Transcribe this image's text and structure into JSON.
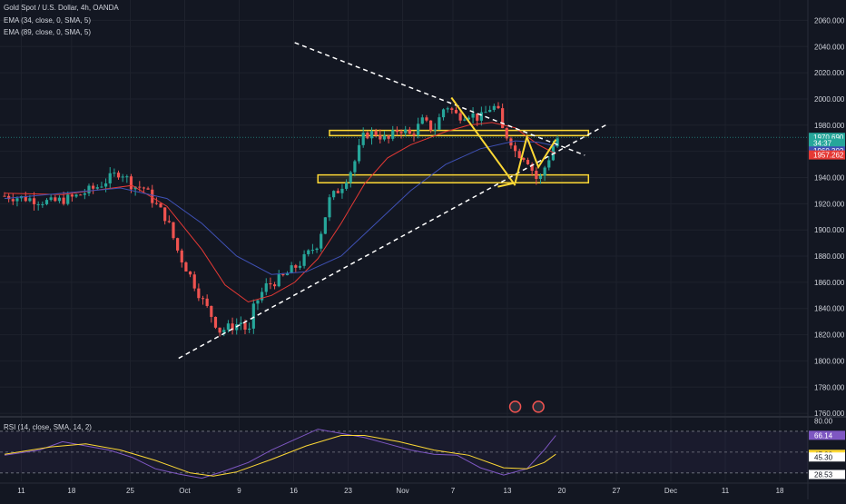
{
  "header": {
    "symbol_line": "Gold Spot / U.S. Dollar, 4h, OANDA",
    "ema_fast_line": "EMA (34, close, 0, SMA, 5)",
    "ema_slow_line": "EMA (89, close, 0, SMA, 5)",
    "rsi_line": "RSI (14, close, SMA, 14, 2)"
  },
  "colors": {
    "background": "#131722",
    "grid": "#1e222d",
    "up": "#26a69a",
    "down": "#ef5350",
    "ema_fast": "#e53935",
    "ema_slow": "#3f51b5",
    "rsi_line": "#7e57c2",
    "rsi_ma": "#fdd835",
    "zone": "#fdd835",
    "trendline": "#ffffff"
  },
  "chart_data": [
    {
      "type": "candlestick",
      "title": "Gold Spot / U.S. Dollar, 4h, OANDA",
      "ylim": [
        1758,
        2070
      ],
      "y_ticks": [
        2060,
        2040,
        2020,
        2000,
        1980,
        1960,
        1940,
        1920,
        1900,
        1880,
        1860,
        1840,
        1820,
        1800,
        1780,
        1760
      ],
      "y_tick_labels": [
        "2060.000",
        "2040.000",
        "2020.000",
        "2000.000",
        "1980.000",
        "1960.000",
        "1940.000",
        "1920.000",
        "1900.000",
        "1880.000",
        "1860.000",
        "1840.000",
        "1820.000",
        "1800.000",
        "1780.000",
        "1760.000"
      ],
      "x_tick_labels": [
        "11",
        "18",
        "25",
        "Oct",
        "9",
        "16",
        "23",
        "Nov",
        "7",
        "13",
        "20",
        "27",
        "Dec",
        "11",
        "18"
      ],
      "price_path": [
        [
          0,
          1926
        ],
        [
          4,
          1924
        ],
        [
          8,
          1921
        ],
        [
          12,
          1925
        ],
        [
          16,
          1933
        ],
        [
          20,
          1945
        ],
        [
          22,
          1934
        ],
        [
          24,
          1932
        ],
        [
          26,
          1920
        ],
        [
          28,
          1908
        ],
        [
          30,
          1882
        ],
        [
          32,
          1865
        ],
        [
          34,
          1847
        ],
        [
          36,
          1832
        ],
        [
          37,
          1823
        ],
        [
          39,
          1826
        ],
        [
          41,
          1830
        ],
        [
          42,
          1818
        ],
        [
          43,
          1842
        ],
        [
          45,
          1857
        ],
        [
          48,
          1864
        ],
        [
          51,
          1875
        ],
        [
          54,
          1890
        ],
        [
          56,
          1923
        ],
        [
          58,
          1933
        ],
        [
          60,
          1948
        ],
        [
          62,
          1973
        ],
        [
          64,
          1974
        ],
        [
          66,
          1968
        ],
        [
          68,
          1978
        ],
        [
          70,
          1972
        ],
        [
          72,
          1983
        ],
        [
          74,
          1976
        ],
        [
          76,
          1996
        ],
        [
          78,
          1987
        ],
        [
          80,
          1989
        ],
        [
          82,
          1985
        ],
        [
          84,
          1995
        ],
        [
          85,
          1991
        ],
        [
          86,
          1973
        ],
        [
          87,
          1971
        ],
        [
          88,
          1960
        ],
        [
          90,
          1955
        ],
        [
          91,
          1945
        ],
        [
          92,
          1936
        ],
        [
          93,
          1947
        ],
        [
          94,
          1957
        ],
        [
          95,
          1970
        ]
      ],
      "series": [
        {
          "name": "EMA (34, close, 0, SMA, 5)",
          "values_path": [
            [
              0,
              1928
            ],
            [
              10,
              1927
            ],
            [
              22,
              1934
            ],
            [
              28,
              1918
            ],
            [
              34,
              1885
            ],
            [
              38,
              1858
            ],
            [
              42,
              1845
            ],
            [
              46,
              1850
            ],
            [
              50,
              1860
            ],
            [
              54,
              1878
            ],
            [
              58,
              1905
            ],
            [
              62,
              1935
            ],
            [
              66,
              1955
            ],
            [
              70,
              1965
            ],
            [
              76,
              1975
            ],
            [
              80,
              1980
            ],
            [
              84,
              1982
            ],
            [
              88,
              1978
            ],
            [
              92,
              1965
            ],
            [
              95,
              1958
            ]
          ]
        },
        {
          "name": "EMA (89, close, 0, SMA, 5)",
          "values_path": [
            [
              0,
              1924
            ],
            [
              10,
              1928
            ],
            [
              20,
              1932
            ],
            [
              28,
              1924
            ],
            [
              34,
              1905
            ],
            [
              40,
              1880
            ],
            [
              46,
              1866
            ],
            [
              52,
              1868
            ],
            [
              58,
              1880
            ],
            [
              64,
              1905
            ],
            [
              70,
              1930
            ],
            [
              76,
              1950
            ],
            [
              82,
              1962
            ],
            [
              88,
              1968
            ],
            [
              92,
              1967
            ],
            [
              95,
              1964
            ]
          ]
        }
      ],
      "last_price_tags": [
        {
          "label": "1970.690",
          "value": 1970.69,
          "color": "#26a69a"
        },
        {
          "label": "34:37",
          "value": 1966.2,
          "color": "#26a69a"
        },
        {
          "label": "1960.302",
          "value": 1960.3,
          "color": "#3f51b5"
        },
        {
          "label": "1957.262",
          "value": 1957.26,
          "color": "#e53935"
        }
      ],
      "annotations": {
        "resistance_zone": [
          1972,
          1976
        ],
        "support_zone": [
          1936,
          1942
        ],
        "falling_trendline": [
          [
            50,
            2043
          ],
          [
            100,
            1957
          ]
        ],
        "rising_trendline": [
          [
            30,
            1802
          ],
          [
            104,
            1981
          ]
        ],
        "projection_down": [
          [
            77,
            2001
          ],
          [
            88,
            1934
          ]
        ],
        "projection_path": [
          [
            85,
            1933
          ],
          [
            88,
            1936
          ],
          [
            90,
            1971
          ],
          [
            92,
            1948
          ],
          [
            95,
            1969
          ]
        ]
      }
    },
    {
      "type": "line",
      "title": "RSI (14, close, SMA, 14, 2)",
      "ylim": [
        22,
        83
      ],
      "y_ticks": [
        80,
        66.14,
        47.88,
        45.3,
        28.53
      ],
      "y_tick_labels": [
        "80.00",
        "66.14",
        "47.88",
        "45.30",
        "28.53"
      ],
      "bands": [
        70,
        50,
        30
      ],
      "series": [
        {
          "name": "RSI",
          "values_path": [
            [
              0,
              47
            ],
            [
              6,
              52
            ],
            [
              10,
              60
            ],
            [
              14,
              56
            ],
            [
              18,
              52
            ],
            [
              22,
              45
            ],
            [
              26,
              34
            ],
            [
              30,
              29
            ],
            [
              34,
              25
            ],
            [
              38,
              32
            ],
            [
              42,
              40
            ],
            [
              46,
              52
            ],
            [
              50,
              62
            ],
            [
              54,
              72
            ],
            [
              58,
              68
            ],
            [
              62,
              64
            ],
            [
              66,
              58
            ],
            [
              70,
              52
            ],
            [
              74,
              48
            ],
            [
              78,
              47
            ],
            [
              82,
              35
            ],
            [
              86,
              28
            ],
            [
              90,
              34
            ],
            [
              93,
              52
            ],
            [
              95,
              66
            ]
          ]
        },
        {
          "name": "RSI MA",
          "values_path": [
            [
              0,
              48
            ],
            [
              8,
              55
            ],
            [
              14,
              58
            ],
            [
              20,
              52
            ],
            [
              26,
              42
            ],
            [
              32,
              30
            ],
            [
              36,
              27
            ],
            [
              40,
              31
            ],
            [
              46,
              43
            ],
            [
              52,
              56
            ],
            [
              58,
              66
            ],
            [
              62,
              66
            ],
            [
              68,
              60
            ],
            [
              74,
              52
            ],
            [
              80,
              47
            ],
            [
              86,
              35
            ],
            [
              90,
              34
            ],
            [
              93,
              40
            ],
            [
              95,
              48
            ]
          ]
        }
      ]
    }
  ]
}
